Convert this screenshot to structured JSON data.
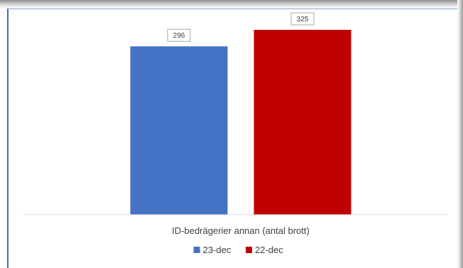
{
  "chart_data": {
    "type": "bar",
    "categories": [
      "ID-bedrägerier annan (antal brott)"
    ],
    "series": [
      {
        "name": "23-dec",
        "values": [
          296
        ],
        "color": "#4472c4"
      },
      {
        "name": "22-dec",
        "values": [
          325
        ],
        "color": "#c00000"
      }
    ],
    "xlabel": "ID-bedrägerier annan (antal brott)",
    "ylim": [
      0,
      340
    ],
    "grid": false,
    "legend_position": "bottom",
    "data_labels": true
  }
}
